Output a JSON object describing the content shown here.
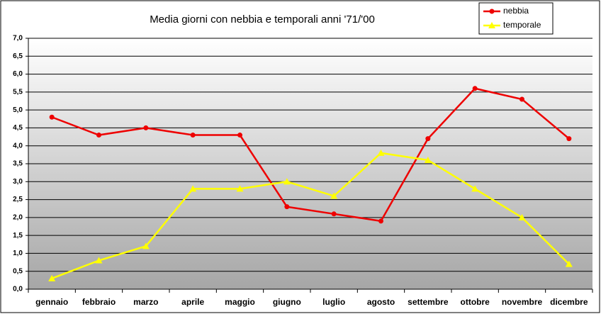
{
  "chart_data": {
    "type": "line",
    "title": "Media giorni con nebbia e temporali anni '71/'00",
    "categories": [
      "gennaio",
      "febbraio",
      "marzo",
      "aprile",
      "maggio",
      "giugno",
      "luglio",
      "agosto",
      "settembre",
      "ottobre",
      "novembre",
      "dicembre"
    ],
    "series": [
      {
        "name": "nebbia",
        "color": "#ee0000",
        "marker": "circle",
        "values": [
          4.8,
          4.3,
          4.5,
          4.3,
          4.3,
          2.3,
          2.1,
          1.9,
          4.2,
          5.6,
          5.3,
          4.2
        ]
      },
      {
        "name": "temporale",
        "color": "#ffff00",
        "marker": "triangle",
        "values": [
          0.3,
          0.8,
          1.2,
          2.8,
          2.8,
          3.0,
          2.6,
          3.8,
          3.6,
          2.8,
          2.0,
          0.7
        ]
      }
    ],
    "ylim": [
      0,
      7
    ],
    "yticks": [
      {
        "value": 0,
        "label": "0,0"
      },
      {
        "value": 0.5,
        "label": "0,5"
      },
      {
        "value": 1,
        "label": "1,0"
      },
      {
        "value": 1.5,
        "label": "1,5"
      },
      {
        "value": 2,
        "label": "2,0"
      },
      {
        "value": 2.5,
        "label": "2,5"
      },
      {
        "value": 3,
        "label": "3,0"
      },
      {
        "value": 3.5,
        "label": "3,5"
      },
      {
        "value": 4,
        "label": "4,0"
      },
      {
        "value": 4.5,
        "label": "4,5"
      },
      {
        "value": 5,
        "label": "5,0"
      },
      {
        "value": 5.5,
        "label": "5,5"
      },
      {
        "value": 6,
        "label": "6,0"
      },
      {
        "value": 6.5,
        "label": "6,5"
      },
      {
        "value": 7,
        "label": "7,0"
      }
    ],
    "grid": true,
    "legend": "top-right"
  }
}
